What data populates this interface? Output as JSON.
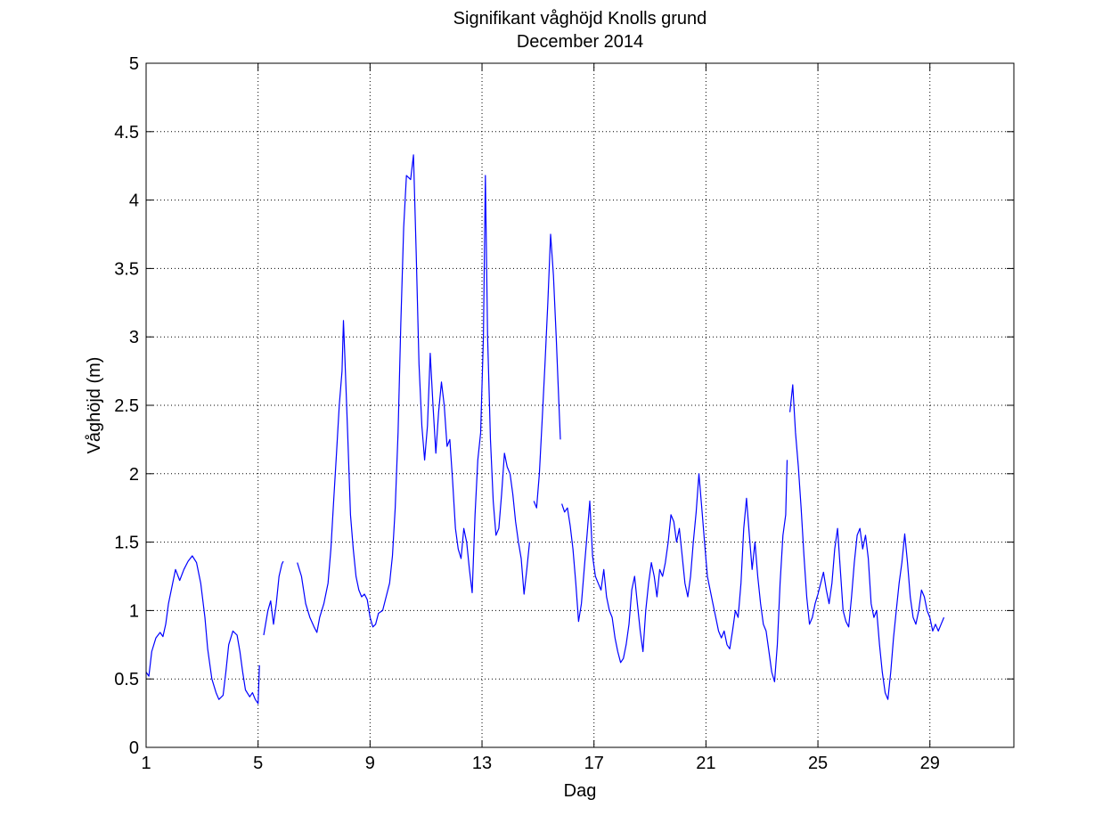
{
  "chart_data": {
    "type": "line",
    "title": "Signifikant våghöjd Knolls grund",
    "subtitle": "December 2014",
    "xlabel": "Dag",
    "ylabel": "Våghöjd (m)",
    "xlim": [
      1,
      32
    ],
    "ylim": [
      0,
      5
    ],
    "xticks": [
      1,
      5,
      9,
      13,
      17,
      21,
      25,
      29
    ],
    "yticks": [
      0,
      0.5,
      1,
      1.5,
      2,
      2.5,
      3,
      3.5,
      4,
      4.5,
      5
    ],
    "ytick_labels": [
      "0",
      "0.5",
      "1",
      "1.5",
      "2",
      "2.5",
      "3",
      "3.5",
      "4",
      "4.5",
      "5"
    ],
    "grid": true,
    "line_color": "#0000ff",
    "series": [
      {
        "segments": [
          [
            [
              1.0,
              0.55
            ],
            [
              1.1,
              0.52
            ],
            [
              1.2,
              0.7
            ],
            [
              1.35,
              0.8
            ],
            [
              1.5,
              0.84
            ],
            [
              1.6,
              0.81
            ],
            [
              1.7,
              0.9
            ],
            [
              1.8,
              1.05
            ],
            [
              1.95,
              1.2
            ],
            [
              2.05,
              1.3
            ],
            [
              2.2,
              1.22
            ],
            [
              2.35,
              1.3
            ],
            [
              2.5,
              1.36
            ],
            [
              2.65,
              1.4
            ],
            [
              2.8,
              1.35
            ],
            [
              2.95,
              1.2
            ],
            [
              3.1,
              0.95
            ],
            [
              3.2,
              0.72
            ],
            [
              3.35,
              0.5
            ],
            [
              3.5,
              0.4
            ],
            [
              3.6,
              0.35
            ],
            [
              3.75,
              0.38
            ],
            [
              3.85,
              0.55
            ],
            [
              3.95,
              0.75
            ],
            [
              4.1,
              0.85
            ],
            [
              4.25,
              0.82
            ],
            [
              4.35,
              0.7
            ],
            [
              4.45,
              0.55
            ],
            [
              4.55,
              0.42
            ],
            [
              4.7,
              0.37
            ],
            [
              4.8,
              0.4
            ],
            [
              4.9,
              0.35
            ],
            [
              5.0,
              0.32
            ],
            [
              5.05,
              0.6
            ]
          ],
          [
            [
              5.2,
              0.82
            ],
            [
              5.35,
              1.0
            ],
            [
              5.45,
              1.07
            ],
            [
              5.55,
              0.9
            ],
            [
              5.65,
              1.05
            ],
            [
              5.75,
              1.25
            ],
            [
              5.85,
              1.34
            ],
            [
              5.9,
              1.36
            ]
          ],
          [
            [
              6.4,
              1.35
            ],
            [
              6.55,
              1.25
            ],
            [
              6.7,
              1.05
            ],
            [
              6.85,
              0.95
            ],
            [
              7.0,
              0.88
            ],
            [
              7.1,
              0.84
            ],
            [
              7.2,
              0.95
            ],
            [
              7.35,
              1.05
            ],
            [
              7.5,
              1.2
            ],
            [
              7.6,
              1.45
            ],
            [
              7.7,
              1.8
            ],
            [
              7.8,
              2.15
            ],
            [
              7.9,
              2.5
            ],
            [
              8.0,
              2.75
            ],
            [
              8.05,
              3.12
            ],
            [
              8.1,
              2.85
            ],
            [
              8.2,
              2.3
            ],
            [
              8.3,
              1.7
            ],
            [
              8.4,
              1.45
            ],
            [
              8.5,
              1.25
            ],
            [
              8.6,
              1.15
            ],
            [
              8.7,
              1.1
            ],
            [
              8.8,
              1.12
            ],
            [
              8.9,
              1.08
            ],
            [
              9.0,
              0.95
            ],
            [
              9.1,
              0.88
            ],
            [
              9.2,
              0.9
            ],
            [
              9.3,
              0.98
            ],
            [
              9.45,
              1.0
            ],
            [
              9.55,
              1.08
            ],
            [
              9.7,
              1.2
            ],
            [
              9.8,
              1.4
            ],
            [
              9.9,
              1.75
            ],
            [
              10.0,
              2.3
            ],
            [
              10.1,
              3.1
            ],
            [
              10.2,
              3.8
            ],
            [
              10.3,
              4.18
            ],
            [
              10.45,
              4.15
            ],
            [
              10.55,
              4.33
            ],
            [
              10.65,
              3.6
            ],
            [
              10.75,
              2.8
            ],
            [
              10.85,
              2.35
            ],
            [
              10.95,
              2.1
            ],
            [
              11.05,
              2.35
            ],
            [
              11.15,
              2.88
            ],
            [
              11.25,
              2.5
            ],
            [
              11.35,
              2.15
            ],
            [
              11.45,
              2.45
            ],
            [
              11.55,
              2.67
            ],
            [
              11.65,
              2.5
            ],
            [
              11.75,
              2.2
            ],
            [
              11.85,
              2.25
            ],
            [
              11.95,
              1.95
            ],
            [
              12.05,
              1.6
            ],
            [
              12.15,
              1.45
            ],
            [
              12.25,
              1.38
            ],
            [
              12.35,
              1.6
            ],
            [
              12.45,
              1.5
            ],
            [
              12.55,
              1.3
            ],
            [
              12.65,
              1.13
            ],
            [
              12.75,
              1.7
            ],
            [
              12.85,
              2.1
            ],
            [
              12.95,
              2.3
            ],
            [
              13.05,
              3.0
            ],
            [
              13.12,
              4.18
            ],
            [
              13.2,
              3.0
            ],
            [
              13.3,
              2.25
            ],
            [
              13.4,
              1.8
            ],
            [
              13.5,
              1.55
            ],
            [
              13.6,
              1.6
            ],
            [
              13.7,
              1.85
            ],
            [
              13.8,
              2.15
            ],
            [
              13.9,
              2.05
            ],
            [
              14.0,
              2.0
            ],
            [
              14.1,
              1.85
            ],
            [
              14.2,
              1.65
            ],
            [
              14.3,
              1.5
            ],
            [
              14.4,
              1.38
            ],
            [
              14.5,
              1.12
            ],
            [
              14.6,
              1.3
            ],
            [
              14.7,
              1.5
            ]
          ],
          [
            [
              14.85,
              1.8
            ],
            [
              14.95,
              1.75
            ],
            [
              15.05,
              2.0
            ],
            [
              15.15,
              2.4
            ],
            [
              15.25,
              2.8
            ],
            [
              15.35,
              3.25
            ],
            [
              15.45,
              3.75
            ],
            [
              15.55,
              3.45
            ],
            [
              15.65,
              3.0
            ],
            [
              15.75,
              2.5
            ],
            [
              15.8,
              2.25
            ]
          ],
          [
            [
              15.85,
              1.78
            ],
            [
              15.95,
              1.72
            ],
            [
              16.05,
              1.75
            ],
            [
              16.15,
              1.62
            ],
            [
              16.25,
              1.45
            ],
            [
              16.35,
              1.2
            ],
            [
              16.45,
              0.92
            ],
            [
              16.55,
              1.05
            ],
            [
              16.65,
              1.3
            ],
            [
              16.75,
              1.55
            ],
            [
              16.85,
              1.8
            ],
            [
              16.95,
              1.4
            ],
            [
              17.05,
              1.25
            ],
            [
              17.15,
              1.2
            ],
            [
              17.25,
              1.15
            ],
            [
              17.35,
              1.3
            ],
            [
              17.45,
              1.1
            ],
            [
              17.55,
              1.0
            ],
            [
              17.65,
              0.95
            ],
            [
              17.75,
              0.8
            ],
            [
              17.85,
              0.7
            ],
            [
              17.95,
              0.62
            ],
            [
              18.05,
              0.65
            ],
            [
              18.15,
              0.75
            ],
            [
              18.25,
              0.9
            ],
            [
              18.35,
              1.15
            ],
            [
              18.45,
              1.25
            ],
            [
              18.55,
              1.05
            ],
            [
              18.65,
              0.85
            ],
            [
              18.75,
              0.7
            ],
            [
              18.85,
              1.0
            ],
            [
              18.95,
              1.2
            ],
            [
              19.05,
              1.35
            ],
            [
              19.15,
              1.25
            ],
            [
              19.25,
              1.1
            ],
            [
              19.35,
              1.3
            ],
            [
              19.45,
              1.25
            ],
            [
              19.55,
              1.35
            ],
            [
              19.65,
              1.5
            ],
            [
              19.75,
              1.7
            ],
            [
              19.85,
              1.65
            ],
            [
              19.95,
              1.5
            ],
            [
              20.05,
              1.6
            ],
            [
              20.15,
              1.4
            ],
            [
              20.25,
              1.2
            ],
            [
              20.35,
              1.1
            ],
            [
              20.45,
              1.25
            ],
            [
              20.55,
              1.5
            ],
            [
              20.65,
              1.72
            ],
            [
              20.75,
              2.0
            ],
            [
              20.85,
              1.75
            ],
            [
              20.95,
              1.5
            ],
            [
              21.05,
              1.25
            ],
            [
              21.15,
              1.15
            ],
            [
              21.25,
              1.05
            ],
            [
              21.35,
              0.95
            ],
            [
              21.45,
              0.85
            ],
            [
              21.55,
              0.8
            ],
            [
              21.65,
              0.85
            ],
            [
              21.75,
              0.75
            ],
            [
              21.85,
              0.72
            ],
            [
              21.95,
              0.85
            ],
            [
              22.05,
              1.0
            ],
            [
              22.15,
              0.95
            ],
            [
              22.25,
              1.2
            ],
            [
              22.35,
              1.6
            ],
            [
              22.45,
              1.82
            ],
            [
              22.55,
              1.55
            ],
            [
              22.65,
              1.3
            ],
            [
              22.75,
              1.5
            ],
            [
              22.85,
              1.25
            ],
            [
              22.95,
              1.05
            ],
            [
              23.05,
              0.9
            ],
            [
              23.15,
              0.85
            ],
            [
              23.25,
              0.7
            ],
            [
              23.35,
              0.55
            ],
            [
              23.45,
              0.48
            ],
            [
              23.55,
              0.75
            ],
            [
              23.65,
              1.2
            ],
            [
              23.75,
              1.55
            ],
            [
              23.85,
              1.7
            ],
            [
              23.9,
              2.1
            ]
          ],
          [
            [
              24.0,
              2.45
            ],
            [
              24.1,
              2.65
            ],
            [
              24.2,
              2.3
            ],
            [
              24.3,
              2.05
            ],
            [
              24.4,
              1.75
            ],
            [
              24.5,
              1.4
            ],
            [
              24.6,
              1.1
            ],
            [
              24.7,
              0.9
            ],
            [
              24.8,
              0.95
            ],
            [
              24.9,
              1.05
            ],
            [
              25.0,
              1.12
            ],
            [
              25.1,
              1.2
            ],
            [
              25.2,
              1.28
            ],
            [
              25.3,
              1.15
            ],
            [
              25.4,
              1.05
            ],
            [
              25.5,
              1.2
            ],
            [
              25.6,
              1.45
            ],
            [
              25.7,
              1.6
            ],
            [
              25.8,
              1.3
            ],
            [
              25.9,
              1.0
            ],
            [
              26.0,
              0.92
            ],
            [
              26.1,
              0.88
            ],
            [
              26.2,
              1.1
            ],
            [
              26.3,
              1.35
            ],
            [
              26.4,
              1.55
            ],
            [
              26.5,
              1.6
            ],
            [
              26.6,
              1.45
            ],
            [
              26.7,
              1.55
            ],
            [
              26.8,
              1.38
            ],
            [
              26.9,
              1.05
            ],
            [
              27.0,
              0.95
            ],
            [
              27.1,
              1.0
            ],
            [
              27.2,
              0.75
            ],
            [
              27.3,
              0.55
            ],
            [
              27.4,
              0.4
            ],
            [
              27.5,
              0.35
            ],
            [
              27.6,
              0.55
            ],
            [
              27.7,
              0.8
            ],
            [
              27.8,
              1.0
            ],
            [
              27.9,
              1.2
            ],
            [
              28.0,
              1.35
            ],
            [
              28.1,
              1.56
            ],
            [
              28.2,
              1.35
            ],
            [
              28.3,
              1.1
            ],
            [
              28.4,
              0.95
            ],
            [
              28.5,
              0.9
            ],
            [
              28.6,
              1.0
            ],
            [
              28.7,
              1.15
            ],
            [
              28.8,
              1.1
            ],
            [
              28.9,
              1.0
            ],
            [
              29.0,
              0.95
            ],
            [
              29.1,
              0.85
            ],
            [
              29.2,
              0.9
            ],
            [
              29.3,
              0.85
            ],
            [
              29.4,
              0.9
            ],
            [
              29.5,
              0.95
            ]
          ]
        ]
      }
    ]
  }
}
